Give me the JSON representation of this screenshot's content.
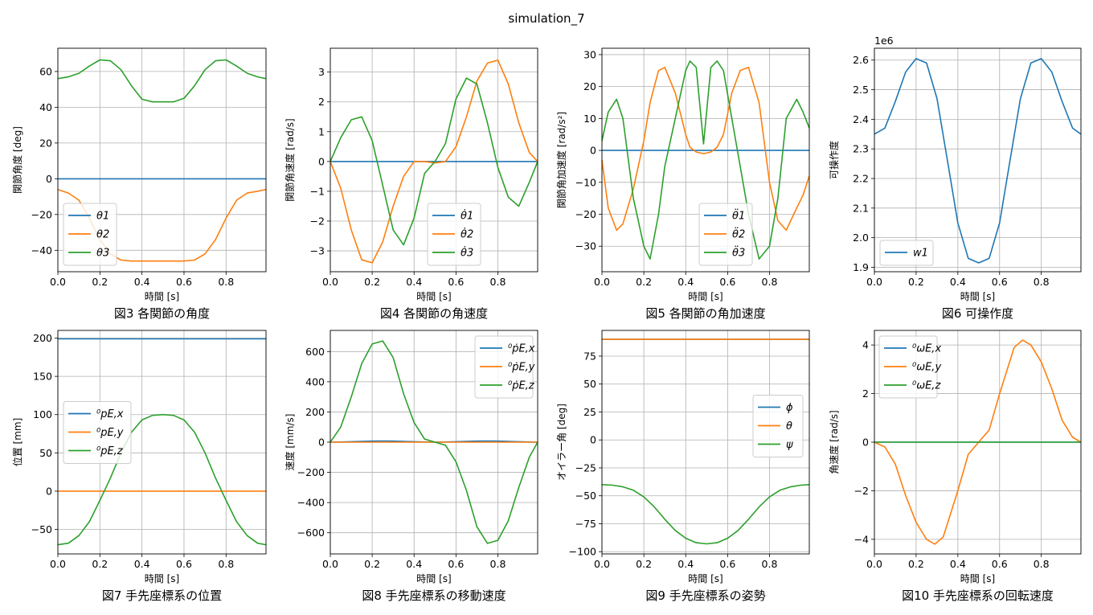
{
  "figure": {
    "title": "simulation_7"
  },
  "chart_data": [
    {
      "id": "fig3",
      "type": "line",
      "caption": "図3 各関節の角度",
      "xlabel": "時間 [s]",
      "ylabel": "関節角度 [deg]",
      "xlim": [
        0,
        0.99
      ],
      "ylim": [
        -52,
        73
      ],
      "xticks": [
        0,
        0.2,
        0.4,
        0.6,
        0.8
      ],
      "yticks": [
        -40,
        -20,
        0,
        20,
        40,
        60
      ],
      "grid": true,
      "legend": "lower-left",
      "x": [
        0,
        0.05,
        0.1,
        0.15,
        0.2,
        0.25,
        0.3,
        0.35,
        0.4,
        0.45,
        0.5,
        0.55,
        0.6,
        0.65,
        0.7,
        0.75,
        0.8,
        0.85,
        0.9,
        0.95,
        0.99
      ],
      "series": [
        {
          "name": "θ1",
          "color": "#1f77b4",
          "values": [
            0,
            0,
            0,
            0,
            0,
            0,
            0,
            0,
            0,
            0,
            0,
            0,
            0,
            0,
            0,
            0,
            0,
            0,
            0,
            0,
            0
          ]
        },
        {
          "name": "θ2",
          "color": "#ff7f0e",
          "values": [
            -6,
            -8,
            -12,
            -22,
            -34,
            -42,
            -45.5,
            -46,
            -46,
            -46,
            -46,
            -46,
            -46,
            -45.5,
            -42,
            -34,
            -22,
            -12,
            -8,
            -7,
            -6
          ]
        },
        {
          "name": "θ3",
          "color": "#2ca02c",
          "values": [
            56,
            57,
            59,
            63,
            66.5,
            66,
            61,
            52,
            44.5,
            43,
            43,
            43,
            45,
            52,
            61,
            66,
            66.5,
            63,
            59,
            57,
            56
          ]
        }
      ]
    },
    {
      "id": "fig4",
      "type": "line",
      "caption": "図4 各関節の角速度",
      "xlabel": "時間 [s]",
      "ylabel": "関節角速度 [rad/s]",
      "xlim": [
        0,
        0.99
      ],
      "ylim": [
        -3.7,
        3.8
      ],
      "xticks": [
        0,
        0.2,
        0.4,
        0.6,
        0.8
      ],
      "yticks": [
        -3,
        -2,
        -1,
        0,
        1,
        2,
        3
      ],
      "grid": true,
      "legend": "lower-center",
      "x": [
        0,
        0.05,
        0.1,
        0.15,
        0.2,
        0.25,
        0.3,
        0.35,
        0.4,
        0.45,
        0.5,
        0.55,
        0.6,
        0.65,
        0.7,
        0.75,
        0.8,
        0.85,
        0.9,
        0.95,
        0.99
      ],
      "series": [
        {
          "name": "θ̇1",
          "color": "#1f77b4",
          "values": [
            0,
            0,
            0,
            0,
            0,
            0,
            0,
            0,
            0,
            0,
            0,
            0,
            0,
            0,
            0,
            0,
            0,
            0,
            0,
            0,
            0
          ]
        },
        {
          "name": "θ̇2",
          "color": "#ff7f0e",
          "values": [
            0,
            -0.9,
            -2.3,
            -3.3,
            -3.4,
            -2.7,
            -1.5,
            -0.5,
            0,
            0,
            -0.05,
            0,
            0.5,
            1.5,
            2.7,
            3.3,
            3.4,
            2.6,
            1.3,
            0.3,
            0
          ]
        },
        {
          "name": "θ̇3",
          "color": "#2ca02c",
          "values": [
            0,
            0.8,
            1.4,
            1.5,
            0.7,
            -0.8,
            -2.3,
            -2.8,
            -1.9,
            -0.4,
            0,
            0.6,
            2.1,
            2.8,
            2.6,
            1.3,
            -0.2,
            -1.2,
            -1.5,
            -0.7,
            0
          ]
        }
      ]
    },
    {
      "id": "fig5",
      "type": "line",
      "caption": "図5 各関節の角加速度",
      "xlabel": "時間 [s]",
      "ylabel": "関節角加速度 [rad/s²]",
      "xlim": [
        0,
        0.99
      ],
      "ylim": [
        -38,
        32
      ],
      "xticks": [
        0,
        0.2,
        0.4,
        0.6,
        0.8
      ],
      "yticks": [
        -30,
        -20,
        -10,
        0,
        10,
        20,
        30
      ],
      "grid": true,
      "legend": "lower-center",
      "x": [
        0,
        0.03,
        0.07,
        0.1,
        0.15,
        0.2,
        0.23,
        0.27,
        0.3,
        0.35,
        0.4,
        0.42,
        0.45,
        0.485,
        0.52,
        0.55,
        0.58,
        0.62,
        0.66,
        0.7,
        0.75,
        0.8,
        0.84,
        0.88,
        0.93,
        0.96,
        0.99
      ],
      "series": [
        {
          "name": "θ̈1",
          "color": "#1f77b4",
          "values": [
            0,
            0,
            0,
            0,
            0,
            0,
            0,
            0,
            0,
            0,
            0,
            0,
            0,
            0,
            0,
            0,
            0,
            0,
            0,
            0,
            0,
            0,
            0,
            0,
            0,
            0,
            0
          ]
        },
        {
          "name": "θ̈2",
          "color": "#ff7f0e",
          "values": [
            -3,
            -18,
            -25,
            -23,
            -12,
            3,
            15,
            25,
            26,
            18,
            5,
            1,
            -0.5,
            -1,
            -0.5,
            1,
            5,
            18,
            25,
            26,
            15,
            -10,
            -22,
            -25,
            -18,
            -14,
            -8
          ]
        },
        {
          "name": "θ̈3",
          "color": "#2ca02c",
          "values": [
            3,
            12,
            16,
            10,
            -15,
            -30,
            -34,
            -20,
            -5,
            10,
            25,
            28,
            26,
            2,
            26,
            28,
            25,
            10,
            -5,
            -20,
            -34,
            -30,
            -15,
            10,
            16,
            12,
            7
          ]
        }
      ]
    },
    {
      "id": "fig6",
      "type": "line",
      "caption": "図6 可操作度",
      "xlabel": "時間 [s]",
      "ylabel": "可操作度",
      "offset_text": "1e6",
      "xlim": [
        0,
        0.99
      ],
      "ylim": [
        1.885,
        2.64
      ],
      "xticks": [
        0,
        0.2,
        0.4,
        0.6,
        0.8
      ],
      "yticks": [
        1.9,
        2.0,
        2.1,
        2.2,
        2.3,
        2.4,
        2.5,
        2.6
      ],
      "grid": true,
      "legend": "lower-left",
      "x": [
        0,
        0.05,
        0.1,
        0.15,
        0.2,
        0.25,
        0.3,
        0.35,
        0.4,
        0.45,
        0.5,
        0.55,
        0.6,
        0.65,
        0.7,
        0.75,
        0.8,
        0.85,
        0.9,
        0.95,
        0.99
      ],
      "series": [
        {
          "name": "w1",
          "color": "#1f77b4",
          "values": [
            2.35,
            2.37,
            2.46,
            2.56,
            2.605,
            2.59,
            2.47,
            2.26,
            2.05,
            1.93,
            1.915,
            1.93,
            2.05,
            2.26,
            2.47,
            2.59,
            2.605,
            2.56,
            2.46,
            2.37,
            2.35
          ]
        }
      ]
    },
    {
      "id": "fig7",
      "type": "line",
      "caption": "図7 手先座標系の位置",
      "xlabel": "時間 [s]",
      "ylabel": "位置 [mm]",
      "xlim": [
        0,
        0.99
      ],
      "ylim": [
        -82,
        210
      ],
      "xticks": [
        0,
        0.2,
        0.4,
        0.6,
        0.8
      ],
      "yticks": [
        -50,
        0,
        50,
        100,
        150,
        200
      ],
      "grid": true,
      "legend": "center-left",
      "x": [
        0,
        0.05,
        0.1,
        0.15,
        0.2,
        0.25,
        0.3,
        0.35,
        0.4,
        0.45,
        0.5,
        0.55,
        0.6,
        0.65,
        0.7,
        0.75,
        0.8,
        0.85,
        0.9,
        0.95,
        0.99
      ],
      "series": [
        {
          "name": "⁰pE,x",
          "color": "#1f77b4",
          "values": [
            199,
            199,
            199,
            199,
            199,
            199,
            199,
            199,
            199,
            199,
            199,
            199,
            199,
            199,
            199,
            199,
            199,
            199,
            199,
            199,
            199
          ]
        },
        {
          "name": "⁰pE,y",
          "color": "#ff7f0e",
          "values": [
            0,
            0,
            0,
            0,
            0,
            0,
            0,
            0,
            0,
            0,
            0,
            0,
            0,
            0,
            0,
            0,
            0,
            0,
            0,
            0,
            0
          ]
        },
        {
          "name": "⁰pE,z",
          "color": "#2ca02c",
          "values": [
            -70,
            -68,
            -58,
            -40,
            -12,
            17,
            50,
            77,
            93,
            99,
            100,
            99,
            93,
            77,
            50,
            17,
            -12,
            -40,
            -58,
            -68,
            -70
          ]
        }
      ]
    },
    {
      "id": "fig8",
      "type": "line",
      "caption": "図8 手先座標系の移動速度",
      "xlabel": "時間 [s]",
      "ylabel": "速度 [mm/s]",
      "xlim": [
        0,
        0.99
      ],
      "ylim": [
        -740,
        740
      ],
      "xticks": [
        0,
        0.2,
        0.4,
        0.6,
        0.8
      ],
      "yticks": [
        -600,
        -400,
        -200,
        0,
        200,
        400,
        600
      ],
      "grid": true,
      "legend": "upper-right",
      "x": [
        0,
        0.05,
        0.1,
        0.15,
        0.2,
        0.25,
        0.3,
        0.35,
        0.4,
        0.45,
        0.5,
        0.55,
        0.6,
        0.65,
        0.7,
        0.75,
        0.8,
        0.85,
        0.9,
        0.95,
        0.99
      ],
      "series": [
        {
          "name": "⁰ṗE,x",
          "color": "#1f77b4",
          "values": [
            0,
            1,
            3,
            5,
            7,
            8,
            7,
            5,
            3,
            1,
            0,
            1,
            3,
            5,
            7,
            8,
            7,
            5,
            3,
            1,
            0
          ]
        },
        {
          "name": "⁰ṗE,y",
          "color": "#ff7f0e",
          "values": [
            0,
            0,
            0,
            0,
            0,
            0,
            0,
            0,
            0,
            0,
            0,
            0,
            0,
            0,
            0,
            0,
            0,
            0,
            0,
            0,
            0
          ]
        },
        {
          "name": "⁰ṗE,z",
          "color": "#2ca02c",
          "values": [
            0,
            100,
            300,
            520,
            650,
            670,
            560,
            320,
            130,
            20,
            0,
            -20,
            -130,
            -320,
            -560,
            -670,
            -650,
            -520,
            -300,
            -100,
            0
          ]
        }
      ]
    },
    {
      "id": "fig9",
      "type": "line",
      "caption": "図9 手先座標系の姿勢",
      "xlabel": "時間 [s]",
      "ylabel": "オイラー角 [deg]",
      "xlim": [
        0,
        0.99
      ],
      "ylim": [
        -102,
        98
      ],
      "xticks": [
        0,
        0.2,
        0.4,
        0.6,
        0.8
      ],
      "yticks": [
        -100,
        -75,
        -50,
        -25,
        0,
        25,
        50,
        75
      ],
      "grid": true,
      "legend": "center-right",
      "x": [
        0,
        0.05,
        0.1,
        0.15,
        0.2,
        0.25,
        0.3,
        0.35,
        0.4,
        0.45,
        0.5,
        0.55,
        0.6,
        0.65,
        0.7,
        0.75,
        0.8,
        0.85,
        0.9,
        0.95,
        0.99
      ],
      "series": [
        {
          "name": "ϕ",
          "color": "#1f77b4",
          "values": [
            90,
            90,
            90,
            90,
            90,
            90,
            90,
            90,
            90,
            90,
            90,
            90,
            90,
            90,
            90,
            90,
            90,
            90,
            90,
            90,
            90
          ]
        },
        {
          "name": "θ",
          "color": "#ff7f0e",
          "values": [
            90,
            90,
            90,
            90,
            90,
            90,
            90,
            90,
            90,
            90,
            90,
            90,
            90,
            90,
            90,
            90,
            90,
            90,
            90,
            90,
            90
          ]
        },
        {
          "name": "ψ",
          "color": "#2ca02c",
          "values": [
            -40,
            -40.5,
            -42,
            -45,
            -51,
            -60,
            -71,
            -81,
            -88,
            -92,
            -93,
            -92,
            -88,
            -81,
            -71,
            -60,
            -51,
            -45,
            -42,
            -40.5,
            -40
          ]
        }
      ]
    },
    {
      "id": "fig10",
      "type": "line",
      "caption": "図10 手先座標系の回転速度",
      "xlabel": "時間 [s]",
      "ylabel": "角速度 [rad/s]",
      "xlim": [
        0,
        0.99
      ],
      "ylim": [
        -4.6,
        4.6
      ],
      "xticks": [
        0,
        0.2,
        0.4,
        0.6,
        0.8
      ],
      "yticks": [
        -4,
        -2,
        0,
        2,
        4
      ],
      "grid": true,
      "legend": "upper-left",
      "x": [
        0,
        0.05,
        0.1,
        0.15,
        0.2,
        0.25,
        0.29,
        0.33,
        0.4,
        0.45,
        0.5,
        0.55,
        0.6,
        0.67,
        0.71,
        0.75,
        0.8,
        0.85,
        0.9,
        0.95,
        0.99
      ],
      "series": [
        {
          "name": "⁰ωE,x",
          "color": "#1f77b4",
          "values": [
            0,
            0,
            0,
            0,
            0,
            0,
            0,
            0,
            0,
            0,
            0,
            0,
            0,
            0,
            0,
            0,
            0,
            0,
            0,
            0,
            0
          ]
        },
        {
          "name": "⁰ωE,y",
          "color": "#ff7f0e",
          "values": [
            0,
            -0.2,
            -0.9,
            -2.2,
            -3.3,
            -4.0,
            -4.2,
            -3.9,
            -2.0,
            -0.5,
            0,
            0.5,
            2.0,
            3.9,
            4.2,
            4.0,
            3.3,
            2.2,
            0.9,
            0.2,
            0
          ]
        },
        {
          "name": "⁰ωE,z",
          "color": "#2ca02c",
          "values": [
            0,
            0,
            0,
            0,
            0,
            0,
            0,
            0,
            0,
            0,
            0,
            0,
            0,
            0,
            0,
            0,
            0,
            0,
            0,
            0,
            0
          ]
        }
      ]
    }
  ]
}
